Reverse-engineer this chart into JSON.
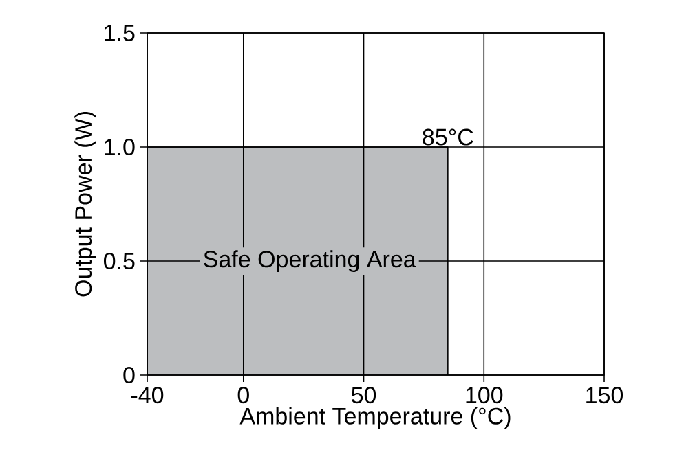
{
  "chart_data": {
    "type": "area",
    "xlabel": "Ambient Temperature (°C)",
    "ylabel": "Output Power (W)",
    "x": [
      -40,
      85
    ],
    "series": [
      {
        "color": "#bcbec0",
        "values": [
          1.0,
          1.0
        ]
      }
    ],
    "xlim": [
      -40,
      150
    ],
    "xticks": [
      -40,
      0,
      50,
      100,
      150
    ],
    "ylim": [
      0,
      1.5
    ],
    "yticks": [
      0,
      0.5,
      {
        "value": 1.0,
        "label": "1.0"
      },
      {
        "value": 1.5,
        "label": "1.5"
      }
    ],
    "grid": true,
    "annotations": [
      {
        "text": "85°C",
        "x": 85,
        "y": 1.0
      },
      "Safe Operating Area"
    ]
  }
}
